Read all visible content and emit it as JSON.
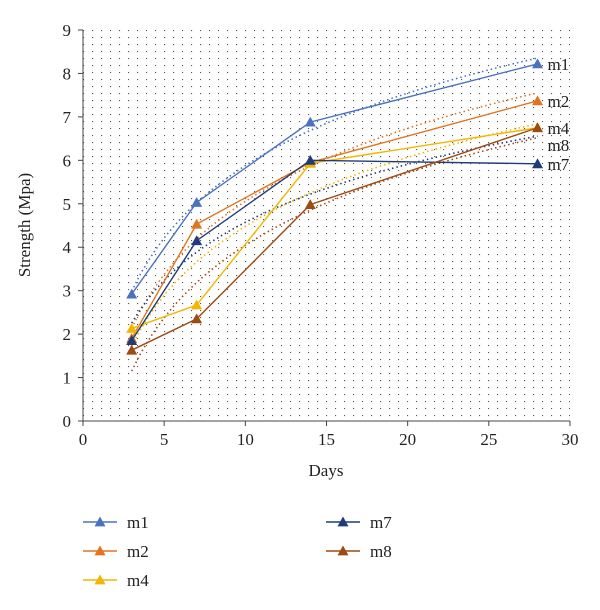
{
  "chart_data": {
    "type": "line",
    "xlabel": "Days",
    "ylabel": "Strength (Mpa)",
    "xlim": [
      0,
      30
    ],
    "ylim": [
      0,
      9
    ],
    "xticks": [
      0,
      5,
      10,
      15,
      20,
      25,
      30
    ],
    "yticks": [
      0,
      1,
      2,
      3,
      4,
      5,
      6,
      7,
      8,
      9
    ],
    "grid": "dotted",
    "legend_position": "bottom",
    "marker": "triangle",
    "trendlines": "dotted",
    "x": [
      3,
      7,
      14,
      28
    ],
    "series": [
      {
        "name": "m1",
        "color": "#4a72c0",
        "values": [
          2.92,
          5.03,
          6.88,
          8.22
        ]
      },
      {
        "name": "m2",
        "color": "#e2741f",
        "values": [
          1.9,
          4.53,
          5.95,
          7.37
        ]
      },
      {
        "name": "m4",
        "color": "#f2b500",
        "values": [
          2.13,
          2.67,
          5.93,
          6.75
        ]
      },
      {
        "name": "m7",
        "color": "#1f3c7a",
        "values": [
          1.85,
          4.15,
          6.0,
          5.92
        ]
      },
      {
        "name": "m8",
        "color": "#9e4a14",
        "values": [
          1.63,
          2.35,
          4.98,
          6.75
        ]
      }
    ]
  }
}
